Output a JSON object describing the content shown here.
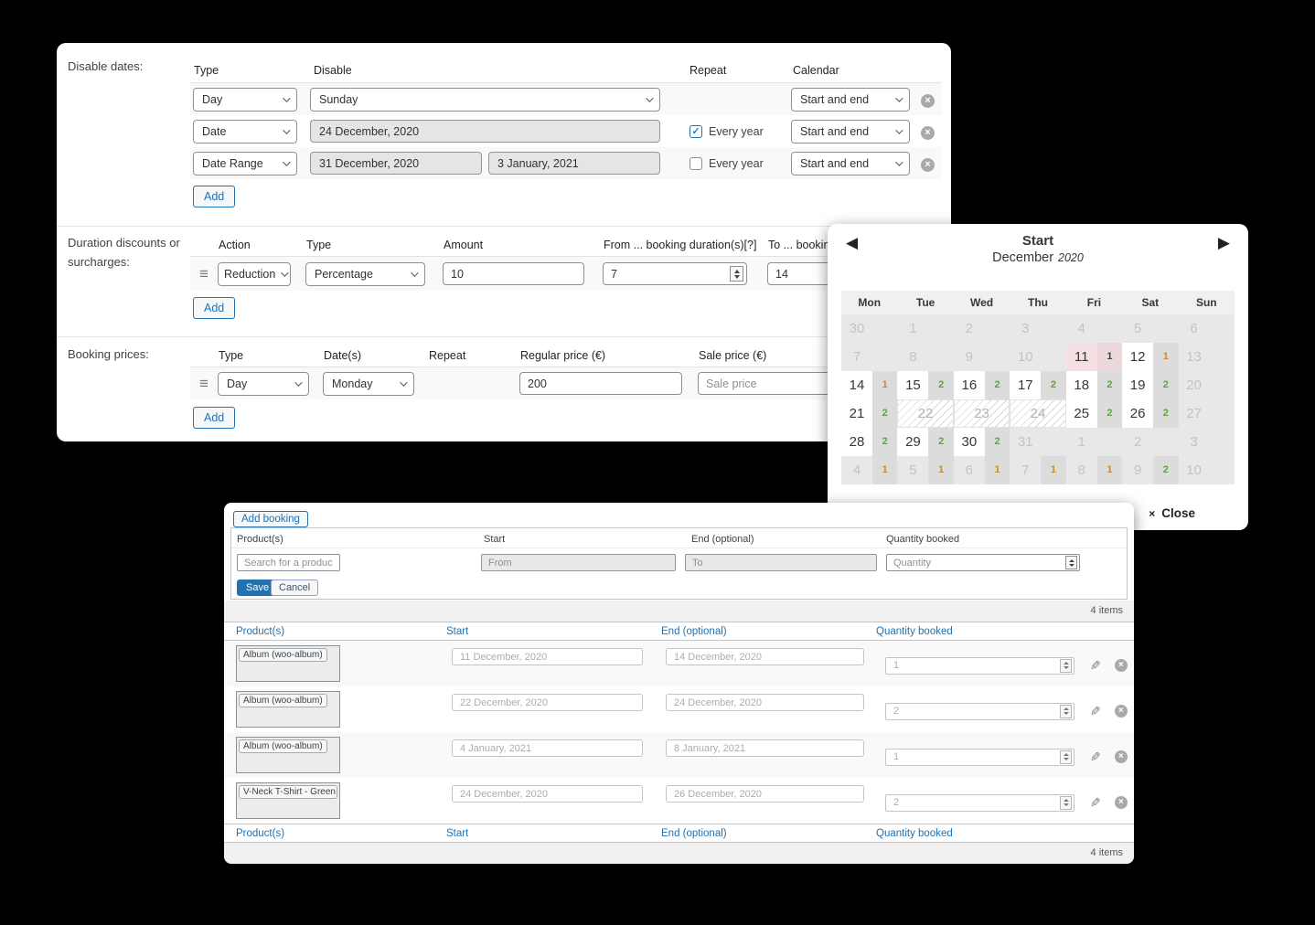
{
  "colors": {
    "primary": "#2271b1",
    "badge_orange": "#cf8a24",
    "badge_green": "#61a33e",
    "selected_pink": "#f6dfe2",
    "selected_border": "#c18f9a"
  },
  "icons": {
    "dismiss": "×",
    "check": "✓",
    "handle": "≡",
    "prev": "◀",
    "next": "▶",
    "close": "×",
    "edit": "✎"
  },
  "settings": {
    "disable_dates": {
      "label": "Disable dates:",
      "headers": {
        "type": "Type",
        "disable": "Disable",
        "repeat": "Repeat",
        "calendar": "Calendar"
      },
      "row1": {
        "type": "Day",
        "disable": "Sunday",
        "calendar": "Start and end"
      },
      "row2": {
        "type": "Date",
        "disable": "24 December, 2020",
        "repeat_label": "Every year",
        "calendar": "Start and end"
      },
      "row3": {
        "type": "Date Range",
        "disable_from": "31 December, 2020",
        "disable_to": "3 January, 2021",
        "repeat_label": "Every year",
        "calendar": "Start and end"
      },
      "add_label": "Add"
    },
    "duration": {
      "label": "Duration discounts or surcharges:",
      "headers": {
        "action": "Action",
        "type": "Type",
        "amount": "Amount",
        "from": "From ... booking duration(s)[?]",
        "to": "To ... booking duration(s)"
      },
      "row": {
        "action": "Reduction",
        "type": "Percentage",
        "amount": "10",
        "from": "7",
        "to": "14"
      },
      "add_label": "Add"
    },
    "booking_prices": {
      "label": "Booking prices:",
      "headers": {
        "type": "Type",
        "dates": "Date(s)",
        "repeat": "Repeat",
        "regular": "Regular price (€)",
        "sale": "Sale price (€)"
      },
      "row": {
        "type": "Day",
        "dates": "Monday",
        "regular": "200",
        "sale_placeholder": "Sale price"
      },
      "add_label": "Add"
    }
  },
  "calendar": {
    "title": "Start",
    "month": "December",
    "year": "2020",
    "day_headers": [
      "Mon",
      "Tue",
      "Wed",
      "Thu",
      "Fri",
      "Sat",
      "Sun"
    ],
    "weeks": [
      [
        {
          "d": "30",
          "s": "dis"
        },
        {
          "d": "1",
          "s": "dis"
        },
        {
          "d": "2",
          "s": "dis"
        },
        {
          "d": "3",
          "s": "dis"
        },
        {
          "d": "4",
          "s": "dis"
        },
        {
          "d": "5",
          "s": "dis"
        },
        {
          "d": "6",
          "s": "dis"
        }
      ],
      [
        {
          "d": "7",
          "s": "dis"
        },
        {
          "d": "8",
          "s": "dis"
        },
        {
          "d": "9",
          "s": "dis"
        },
        {
          "d": "10",
          "s": "dis"
        },
        {
          "d": "11",
          "s": "sel",
          "b": "1",
          "bc": "dark"
        },
        {
          "d": "12",
          "s": "act",
          "b": "1",
          "bc": "orange"
        },
        {
          "d": "13",
          "s": "dis"
        }
      ],
      [
        {
          "d": "14",
          "s": "act",
          "b": "1",
          "bc": "orange"
        },
        {
          "d": "15",
          "s": "act",
          "b": "2",
          "bc": "green"
        },
        {
          "d": "16",
          "s": "act",
          "b": "2",
          "bc": "green"
        },
        {
          "d": "17",
          "s": "act",
          "b": "2",
          "bc": "green"
        },
        {
          "d": "18",
          "s": "act",
          "b": "2",
          "bc": "green"
        },
        {
          "d": "19",
          "s": "act",
          "b": "2",
          "bc": "green"
        },
        {
          "d": "20",
          "s": "dis"
        }
      ],
      [
        {
          "d": "21",
          "s": "act",
          "b": "2",
          "bc": "green"
        },
        {
          "d": "22",
          "s": "hatch"
        },
        {
          "d": "23",
          "s": "hatch"
        },
        {
          "d": "24",
          "s": "hatch"
        },
        {
          "d": "25",
          "s": "act",
          "b": "2",
          "bc": "green"
        },
        {
          "d": "26",
          "s": "act",
          "b": "2",
          "bc": "green"
        },
        {
          "d": "27",
          "s": "dis"
        }
      ],
      [
        {
          "d": "28",
          "s": "act",
          "b": "2",
          "bc": "green"
        },
        {
          "d": "29",
          "s": "act",
          "b": "2",
          "bc": "green"
        },
        {
          "d": "30",
          "s": "act",
          "b": "2",
          "bc": "green"
        },
        {
          "d": "31",
          "s": "dis"
        },
        {
          "d": "1",
          "s": "dis"
        },
        {
          "d": "2",
          "s": "dis"
        },
        {
          "d": "3",
          "s": "dis"
        }
      ],
      [
        {
          "d": "4",
          "s": "dis",
          "b": "1",
          "bc": "orange"
        },
        {
          "d": "5",
          "s": "dis",
          "b": "1",
          "bc": "orange"
        },
        {
          "d": "6",
          "s": "dis",
          "b": "1",
          "bc": "orange"
        },
        {
          "d": "7",
          "s": "dis",
          "b": "1",
          "bc": "orange"
        },
        {
          "d": "8",
          "s": "dis",
          "b": "1",
          "bc": "orange"
        },
        {
          "d": "9",
          "s": "dis",
          "b": "2",
          "bc": "green"
        },
        {
          "d": "10",
          "s": "dis"
        }
      ]
    ],
    "close_label": "Close"
  },
  "booking_manager": {
    "add_button": "Add booking",
    "form": {
      "product_label": "Product(s)",
      "product_placeholder": "Search for a product...",
      "start_label": "Start",
      "start_placeholder": "From",
      "end_label": "End (optional)",
      "end_placeholder": "To",
      "qty_label": "Quantity booked",
      "qty_placeholder": "Quantity",
      "save_label": "Save",
      "cancel_label": "Cancel"
    },
    "items_count": "4 items",
    "table": {
      "headers": [
        "Product(s)",
        "Start",
        "End (optional)",
        "Quantity booked"
      ],
      "rows": [
        {
          "product": "Album (woo-album)",
          "start": "11 December, 2020",
          "end": "14 December, 2020",
          "qty": "1"
        },
        {
          "product": "Album (woo-album)",
          "start": "22 December, 2020",
          "end": "24 December, 2020",
          "qty": "2"
        },
        {
          "product": "Album (woo-album)",
          "start": "4 January, 2021",
          "end": "8 January, 2021",
          "qty": "1"
        },
        {
          "product": "V-Neck T-Shirt - Green (woo-vne",
          "start": "24 December, 2020",
          "end": "26 December, 2020",
          "qty": "2"
        }
      ]
    }
  }
}
